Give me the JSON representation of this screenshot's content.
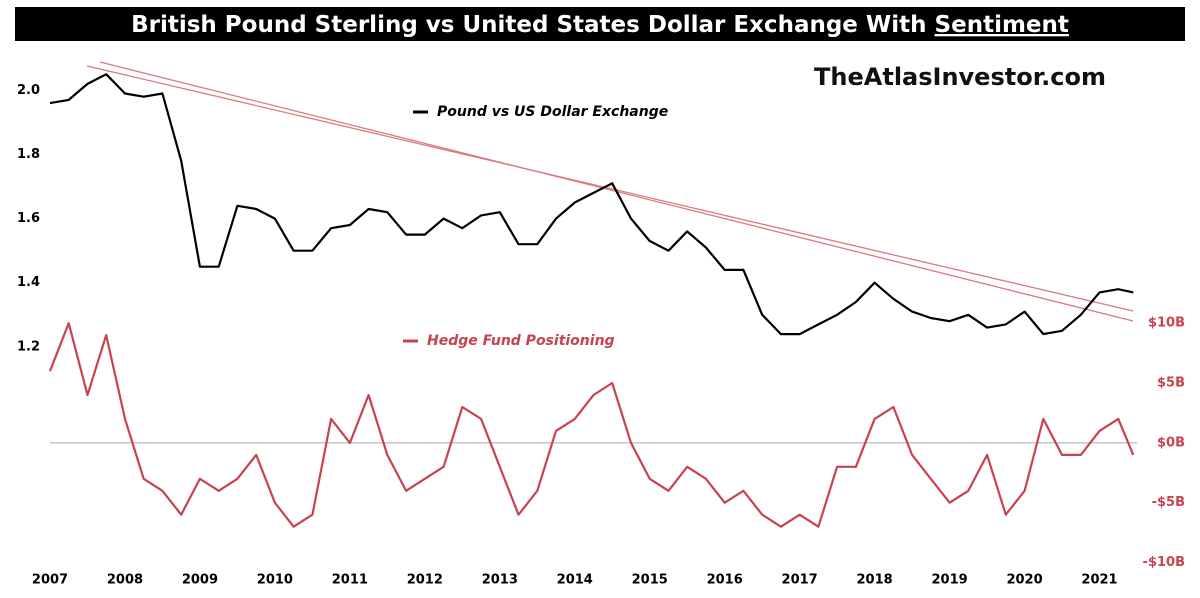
{
  "chart_data": {
    "type": "line",
    "title": "British Pound Sterling vs United States Dollar Exchange With",
    "title_emphasis": "Sentiment",
    "watermark": "TheAtlasInvestor.com",
    "x": [
      2007,
      2007.25,
      2007.5,
      2007.75,
      2008,
      2008.25,
      2008.5,
      2008.75,
      2009,
      2009.25,
      2009.5,
      2009.75,
      2010,
      2010.25,
      2010.5,
      2010.75,
      2011,
      2011.25,
      2011.5,
      2011.75,
      2012,
      2012.25,
      2012.5,
      2012.75,
      2013,
      2013.25,
      2013.5,
      2013.75,
      2014,
      2014.25,
      2014.5,
      2014.75,
      2015,
      2015.25,
      2015.5,
      2015.75,
      2016,
      2016.25,
      2016.5,
      2016.75,
      2017,
      2017.25,
      2017.5,
      2017.75,
      2018,
      2018.25,
      2018.5,
      2018.75,
      2019,
      2019.25,
      2019.5,
      2019.75,
      2020,
      2020.25,
      2020.5,
      2020.75,
      2021,
      2021.25,
      2021.45
    ],
    "xlim": [
      2007,
      2021.5
    ],
    "xticks": [
      2007,
      2008,
      2009,
      2010,
      2011,
      2012,
      2013,
      2014,
      2015,
      2016,
      2017,
      2018,
      2019,
      2020,
      2021
    ],
    "ylim": [
      0.52,
      2.11
    ],
    "yticks": [
      {
        "value": 1.2,
        "label": "1.2"
      },
      {
        "value": 1.4,
        "label": "1.4"
      },
      {
        "value": 1.6,
        "label": "1.6"
      },
      {
        "value": 1.8,
        "label": "1.8"
      },
      {
        "value": 2.0,
        "label": "2.0"
      }
    ],
    "y2lim": [
      -10.2,
      32.4
    ],
    "y2ticks": [
      {
        "value": -10,
        "label": "-$10B"
      },
      {
        "value": -5,
        "label": "-$5B"
      },
      {
        "value": 0,
        "label": "$0B"
      },
      {
        "value": 5,
        "label": "$5B"
      },
      {
        "value": 10,
        "label": "$10B"
      }
    ],
    "zero_line": true,
    "series": [
      {
        "name": "Pound vs US Dollar Exchange",
        "color": "#000000",
        "axis": "y",
        "values": [
          1.96,
          1.97,
          2.02,
          2.05,
          1.99,
          1.98,
          1.99,
          1.78,
          1.45,
          1.45,
          1.64,
          1.63,
          1.6,
          1.5,
          1.5,
          1.57,
          1.58,
          1.63,
          1.62,
          1.55,
          1.55,
          1.6,
          1.57,
          1.61,
          1.62,
          1.52,
          1.52,
          1.6,
          1.65,
          1.68,
          1.71,
          1.6,
          1.53,
          1.5,
          1.56,
          1.51,
          1.44,
          1.44,
          1.3,
          1.24,
          1.24,
          1.27,
          1.3,
          1.34,
          1.4,
          1.35,
          1.31,
          1.29,
          1.28,
          1.3,
          1.26,
          1.27,
          1.31,
          1.24,
          1.25,
          1.3,
          1.37,
          1.38,
          1.37
        ]
      },
      {
        "name": "Hedge Fund Positioning",
        "color": "#c8424f",
        "axis": "y2",
        "values": [
          6,
          10,
          4,
          9,
          2,
          -3,
          -4,
          -6,
          -3,
          -4,
          -3,
          -1,
          -5,
          -7,
          -6,
          2,
          0,
          4,
          -1,
          -4,
          -3,
          -2,
          3,
          2,
          -2,
          -6,
          -4,
          1,
          2,
          4,
          5,
          0,
          -3,
          -4,
          -2,
          -3,
          -5,
          -4,
          -6,
          -7,
          -6,
          -7,
          -2,
          -2,
          2,
          3,
          -1,
          -3,
          -5,
          -4,
          -1,
          -6,
          -4,
          2,
          -1,
          -1,
          1,
          2,
          -1
        ]
      }
    ]
  }
}
